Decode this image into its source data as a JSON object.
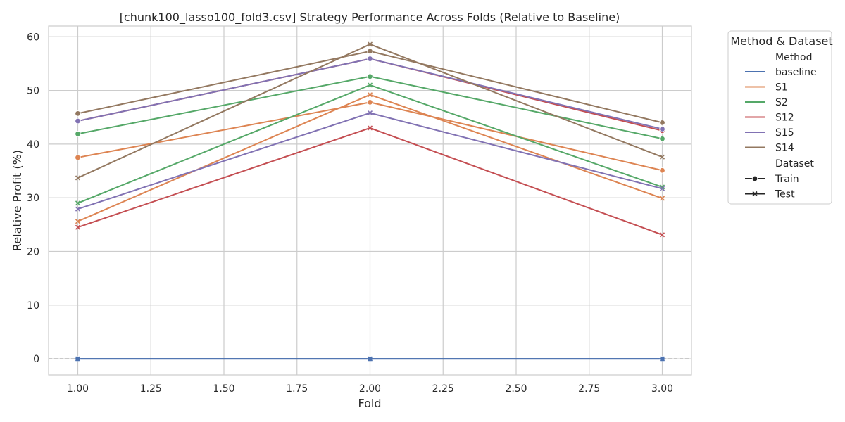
{
  "chart_data": {
    "type": "line",
    "title": "[chunk100_lasso100_fold3.csv] Strategy Performance Across Folds (Relative to Baseline)",
    "xlabel": "Fold",
    "ylabel": "Relative Profit (%)",
    "xlim": [
      0.9,
      3.1
    ],
    "ylim": [
      -3,
      62
    ],
    "x_ticks": [
      1.0,
      1.25,
      1.5,
      1.75,
      2.0,
      2.25,
      2.5,
      2.75,
      3.0
    ],
    "x_tick_labels": [
      "1.00",
      "1.25",
      "1.50",
      "1.75",
      "2.00",
      "2.25",
      "2.50",
      "2.75",
      "3.00"
    ],
    "y_ticks": [
      0,
      10,
      20,
      30,
      40,
      50,
      60
    ],
    "y_tick_labels": [
      "0",
      "10",
      "20",
      "30",
      "40",
      "50",
      "60"
    ],
    "grid": true,
    "reference_line": {
      "y": 0,
      "style": "dashed",
      "color": "#808080"
    },
    "legend": {
      "title": "Method & Dataset",
      "placement": "outside-right-top",
      "method_header": "Method",
      "dataset_header": "Dataset",
      "methods": [
        {
          "name": "baseline",
          "color": "#4c72b0"
        },
        {
          "name": "S1",
          "color": "#dd8452"
        },
        {
          "name": "S2",
          "color": "#55a868"
        },
        {
          "name": "S12",
          "color": "#c44e52"
        },
        {
          "name": "S15",
          "color": "#8172b3"
        },
        {
          "name": "S14",
          "color": "#937860"
        }
      ],
      "datasets": [
        {
          "name": "Train",
          "marker": "circle"
        },
        {
          "name": "Test",
          "marker": "x"
        }
      ]
    },
    "x": [
      1,
      2,
      3
    ],
    "series": [
      {
        "method": "baseline",
        "dataset": "Train",
        "values": [
          0,
          0,
          0
        ]
      },
      {
        "method": "baseline",
        "dataset": "Test",
        "values": [
          0,
          0,
          0
        ]
      },
      {
        "method": "S1",
        "dataset": "Train",
        "values": [
          37.5,
          47.8,
          35.1
        ]
      },
      {
        "method": "S1",
        "dataset": "Test",
        "values": [
          25.6,
          49.2,
          29.9
        ]
      },
      {
        "method": "S2",
        "dataset": "Train",
        "values": [
          41.9,
          52.6,
          41.0
        ]
      },
      {
        "method": "S2",
        "dataset": "Test",
        "values": [
          29.0,
          51.0,
          32.0
        ]
      },
      {
        "method": "S12",
        "dataset": "Train",
        "values": [
          44.3,
          55.9,
          42.5
        ]
      },
      {
        "method": "S12",
        "dataset": "Test",
        "values": [
          24.5,
          43.0,
          23.1
        ]
      },
      {
        "method": "S15",
        "dataset": "Train",
        "values": [
          44.3,
          55.9,
          42.8
        ]
      },
      {
        "method": "S15",
        "dataset": "Test",
        "values": [
          27.9,
          45.8,
          31.7
        ]
      },
      {
        "method": "S14",
        "dataset": "Train",
        "values": [
          45.7,
          57.3,
          44.0
        ]
      },
      {
        "method": "S14",
        "dataset": "Test",
        "values": [
          33.7,
          58.6,
          37.6
        ]
      }
    ]
  }
}
